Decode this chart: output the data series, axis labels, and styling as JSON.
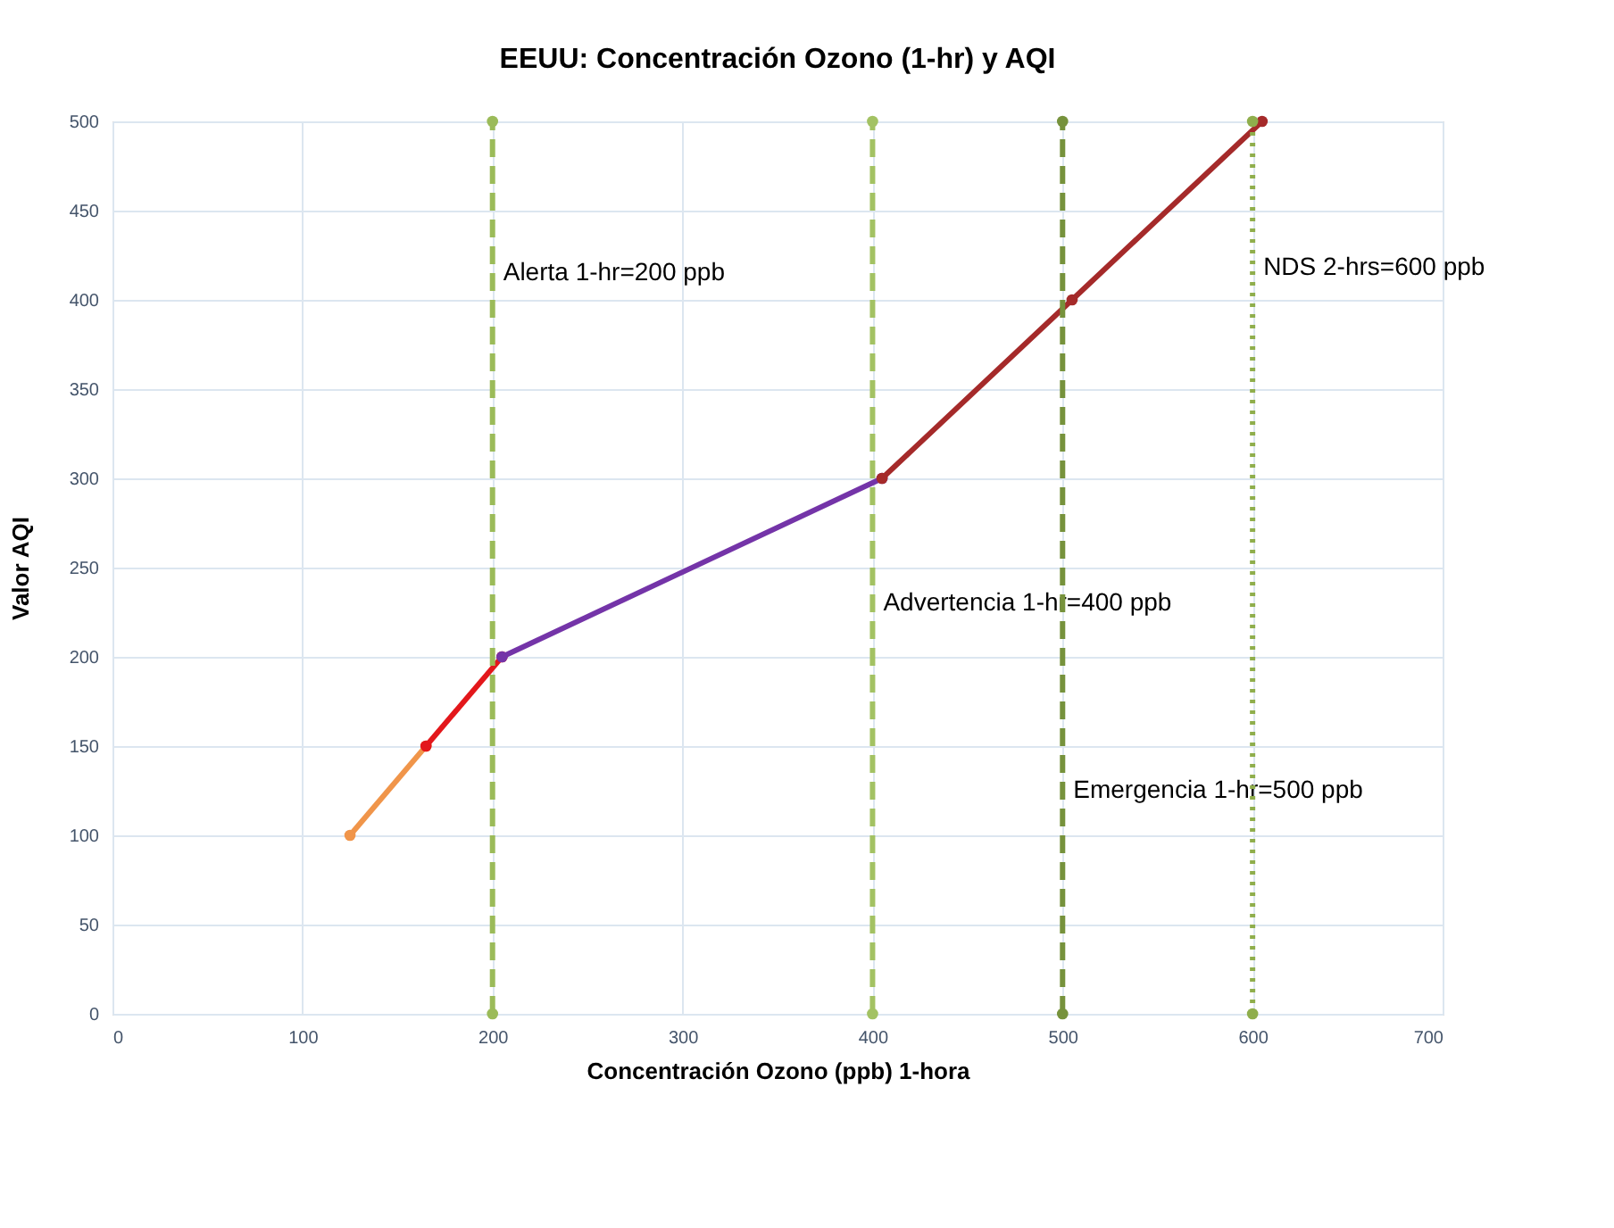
{
  "chart_data": {
    "type": "line",
    "title": "EEUU: Concentración Ozono (1-hr) y AQI",
    "xlabel": "Concentración Ozono (ppb) 1-hora",
    "ylabel": "Valor AQI",
    "xlim": [
      0,
      700
    ],
    "xticks": [
      0,
      100,
      200,
      300,
      400,
      500,
      600,
      700
    ],
    "ylim": [
      0,
      500
    ],
    "yticks": [
      0,
      50,
      100,
      150,
      200,
      250,
      300,
      350,
      400,
      450,
      500
    ],
    "grid": true,
    "marker": "circle",
    "series": [
      {
        "color": "#f0954a",
        "x": [
          125,
          165
        ],
        "values": [
          100,
          150
        ],
        "line_style": "solid"
      },
      {
        "color": "#e3171b",
        "x": [
          165,
          205
        ],
        "values": [
          150,
          200
        ],
        "line_style": "solid"
      },
      {
        "color": "#7434a8",
        "x": [
          205,
          405
        ],
        "values": [
          200,
          300
        ],
        "line_style": "solid"
      },
      {
        "color": "#a52a2a",
        "x": [
          405,
          505,
          605
        ],
        "values": [
          300,
          400,
          500
        ],
        "line_style": "solid"
      },
      {
        "name": "Alerta 1-hr=200 ppb",
        "color": "#9bbb59",
        "x": [
          200,
          200
        ],
        "values": [
          0,
          500
        ],
        "line_style": "dashed"
      },
      {
        "name": "Advertencia 1-hr=400 ppb",
        "color": "#a3c263",
        "x": [
          400,
          400
        ],
        "values": [
          0,
          500
        ],
        "line_style": "dashed"
      },
      {
        "name": "Emergencia 1-hr=500 ppb",
        "color": "#76923c",
        "x": [
          500,
          500
        ],
        "values": [
          0,
          500
        ],
        "line_style": "dashed"
      },
      {
        "name": "NDS 2-hrs=600 ppb",
        "color": "#8fae4c",
        "x": [
          600,
          600
        ],
        "values": [
          0,
          500
        ],
        "line_style": "dotted"
      }
    ]
  }
}
